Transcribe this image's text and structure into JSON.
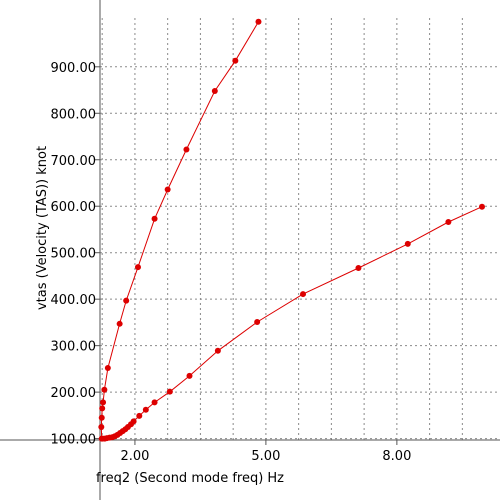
{
  "chart_data": {
    "type": "line",
    "xlabel": "freq2 (Second mode freq) Hz",
    "ylabel": "vtas (Velocity (TAS)) knot",
    "xlim": [
      1.2,
      9.95
    ],
    "ylim": [
      97,
      1005
    ],
    "x_ticks": [
      2.0,
      5.0,
      8.0
    ],
    "x_tick_labels": [
      "2.00",
      "5.00",
      "8.00"
    ],
    "y_ticks": [
      100,
      200,
      300,
      400,
      500,
      600,
      700,
      800,
      900
    ],
    "y_tick_labels": [
      "100.00",
      "200.00",
      "300.00",
      "400.00",
      "500.00",
      "600.00",
      "700.00",
      "800.00",
      "900.00"
    ],
    "x_minor_step": 0.75,
    "grid": true,
    "series_color": "#dd0000",
    "series": [
      {
        "values": [
          {
            "x": 1.24,
            "y": 100
          },
          {
            "x": 1.23,
            "y": 125
          },
          {
            "x": 1.24,
            "y": 145
          },
          {
            "x": 1.25,
            "y": 165
          },
          {
            "x": 1.27,
            "y": 178
          },
          {
            "x": 1.3,
            "y": 205
          },
          {
            "x": 1.38,
            "y": 252
          },
          {
            "x": 1.65,
            "y": 347
          },
          {
            "x": 1.8,
            "y": 397
          },
          {
            "x": 2.07,
            "y": 469
          },
          {
            "x": 2.45,
            "y": 573
          },
          {
            "x": 2.75,
            "y": 636
          },
          {
            "x": 3.18,
            "y": 722
          },
          {
            "x": 3.83,
            "y": 848
          },
          {
            "x": 4.3,
            "y": 913
          },
          {
            "x": 4.83,
            "y": 997
          }
        ]
      },
      {
        "values": [
          {
            "x": 1.26,
            "y": 100
          },
          {
            "x": 1.31,
            "y": 100
          },
          {
            "x": 1.36,
            "y": 101
          },
          {
            "x": 1.42,
            "y": 102
          },
          {
            "x": 1.48,
            "y": 103
          },
          {
            "x": 1.54,
            "y": 105
          },
          {
            "x": 1.6,
            "y": 108
          },
          {
            "x": 1.66,
            "y": 112
          },
          {
            "x": 1.72,
            "y": 116
          },
          {
            "x": 1.78,
            "y": 120
          },
          {
            "x": 1.84,
            "y": 125
          },
          {
            "x": 1.91,
            "y": 131
          },
          {
            "x": 1.97,
            "y": 137
          },
          {
            "x": 2.1,
            "y": 149
          },
          {
            "x": 2.25,
            "y": 162
          },
          {
            "x": 2.45,
            "y": 178
          },
          {
            "x": 2.8,
            "y": 201
          },
          {
            "x": 3.25,
            "y": 235
          },
          {
            "x": 3.9,
            "y": 289
          },
          {
            "x": 4.8,
            "y": 351
          },
          {
            "x": 5.85,
            "y": 411
          },
          {
            "x": 7.12,
            "y": 467
          },
          {
            "x": 8.25,
            "y": 519
          },
          {
            "x": 9.18,
            "y": 566
          },
          {
            "x": 9.95,
            "y": 599
          }
        ]
      }
    ]
  }
}
